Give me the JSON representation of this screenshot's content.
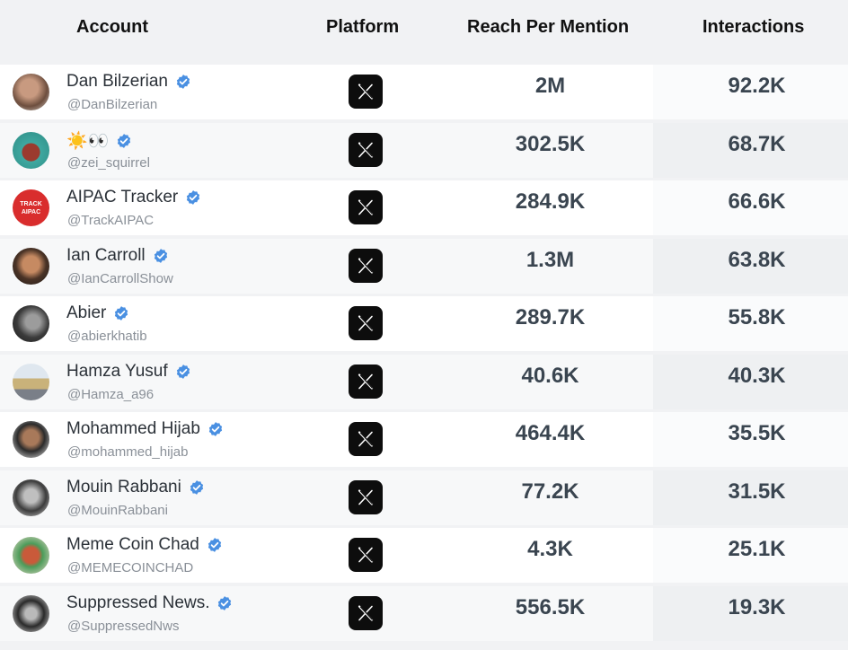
{
  "header": {
    "account": "Account",
    "platform": "Platform",
    "reach": "Reach Per Mention",
    "interactions": "Interactions"
  },
  "colors": {
    "verified": "#4a90e2",
    "x_badge": "#0d0d0d"
  },
  "rows": [
    {
      "name": "Dan Bilzerian",
      "handle": "@DanBilzerian",
      "platform": "X",
      "reach": "2M",
      "interactions": "92.2K"
    },
    {
      "name": "☀️👀",
      "handle": "@zei_squirrel",
      "platform": "X",
      "reach": "302.5K",
      "interactions": "68.7K"
    },
    {
      "name": "AIPAC Tracker",
      "handle": "@TrackAIPAC",
      "platform": "X",
      "reach": "284.9K",
      "interactions": "66.6K"
    },
    {
      "name": "Ian Carroll",
      "handle": "@IanCarrollShow",
      "platform": "X",
      "reach": "1.3M",
      "interactions": "63.8K"
    },
    {
      "name": "Abier",
      "handle": "@abierkhatib",
      "platform": "X",
      "reach": "289.7K",
      "interactions": "55.8K"
    },
    {
      "name": "Hamza Yusuf",
      "handle": "@Hamza_a96",
      "platform": "X",
      "reach": "40.6K",
      "interactions": "40.3K"
    },
    {
      "name": "Mohammed Hijab",
      "handle": "@mohammed_hijab",
      "platform": "X",
      "reach": "464.4K",
      "interactions": "35.5K"
    },
    {
      "name": "Mouin Rabbani",
      "handle": "@MouinRabbani",
      "platform": "X",
      "reach": "77.2K",
      "interactions": "31.5K"
    },
    {
      "name": "Meme Coin Chad",
      "handle": "@MEMECOINCHAD",
      "platform": "X",
      "reach": "4.3K",
      "interactions": "25.1K"
    },
    {
      "name": "Suppressed News.",
      "handle": "@SuppressedNws",
      "platform": "X",
      "reach": "556.5K",
      "interactions": "19.3K"
    }
  ]
}
